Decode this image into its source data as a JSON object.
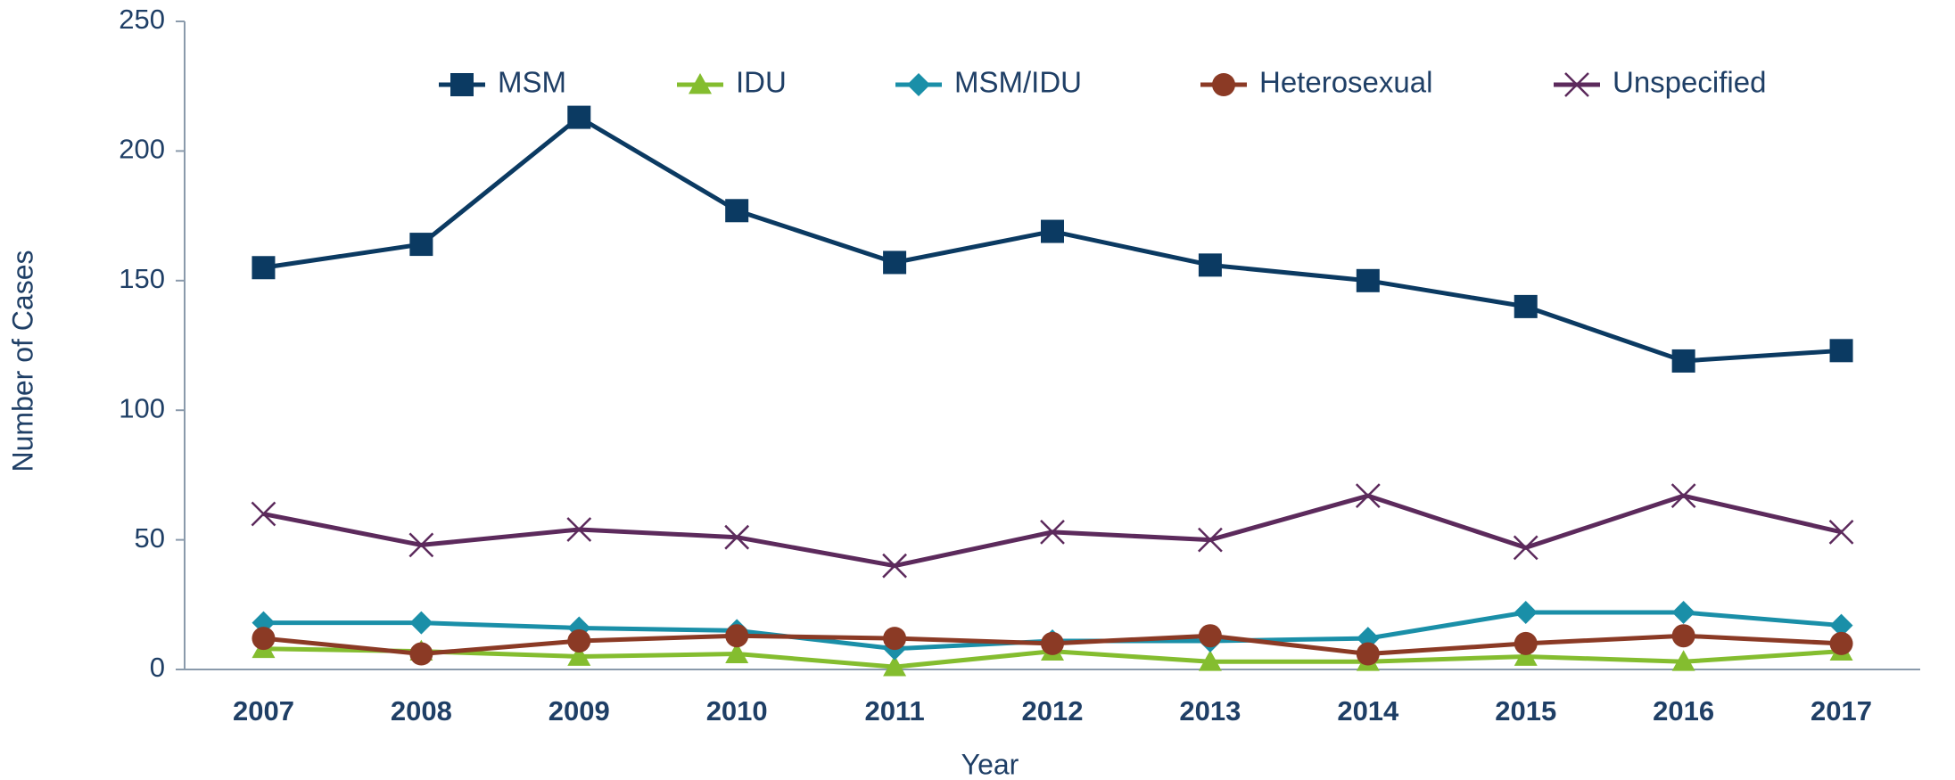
{
  "chart_data": {
    "type": "line",
    "x_label": "Year",
    "y_label": "Number of Cases",
    "categories": [
      "2007",
      "2008",
      "2009",
      "2010",
      "2011",
      "2012",
      "2013",
      "2014",
      "2015",
      "2016",
      "2017"
    ],
    "series": [
      {
        "name": "MSM",
        "color": "#0b3a62",
        "marker": "square",
        "values": [
          155,
          164,
          213,
          177,
          157,
          169,
          156,
          150,
          140,
          119,
          123
        ]
      },
      {
        "name": "IDU",
        "color": "#84bd2f",
        "marker": "triangle",
        "values": [
          8,
          7,
          5,
          6,
          1,
          7,
          3,
          3,
          5,
          3,
          7
        ]
      },
      {
        "name": "MSM/IDU",
        "color": "#1a8fa8",
        "marker": "diamond",
        "values": [
          18,
          18,
          16,
          15,
          8,
          11,
          11,
          12,
          22,
          22,
          17
        ]
      },
      {
        "name": "Heterosexual",
        "color": "#8b3a25",
        "marker": "circle",
        "values": [
          12,
          6,
          11,
          13,
          12,
          10,
          13,
          6,
          10,
          13,
          10
        ]
      },
      {
        "name": "Unspecified",
        "color": "#5c2a5c",
        "marker": "x",
        "values": [
          60,
          48,
          54,
          51,
          40,
          53,
          50,
          67,
          47,
          67,
          53
        ]
      }
    ],
    "ylim": [
      0,
      250
    ],
    "yticks": [
      0,
      50,
      100,
      150,
      200,
      250
    ],
    "grid": false,
    "legend": "top"
  }
}
